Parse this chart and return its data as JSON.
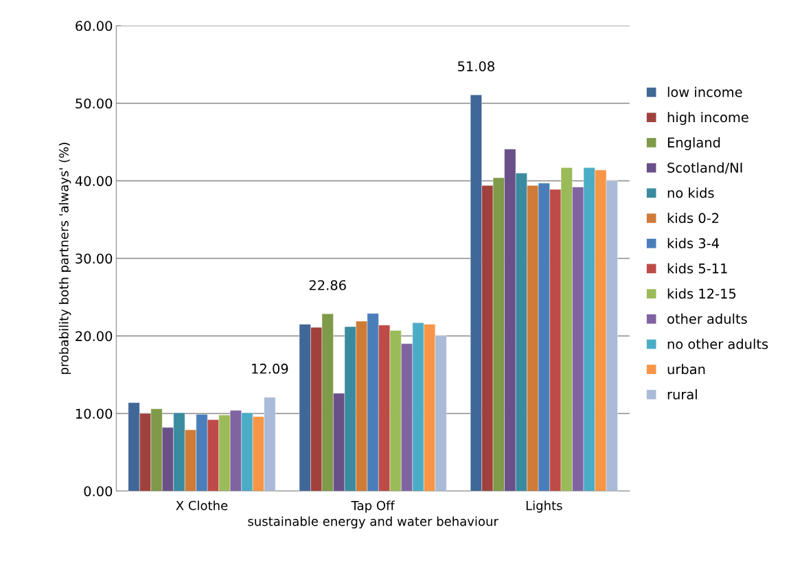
{
  "chart_data": {
    "type": "bar",
    "xlabel": "sustainable energy and water behaviour",
    "ylabel": "probability both partners 'always' (%)",
    "categories": [
      "X Clothe",
      "Tap Off",
      "Lights"
    ],
    "series": [
      {
        "name": "low income",
        "color": "#3f6797",
        "values": [
          11.4,
          21.5,
          51.08
        ],
        "value_labels": [
          null,
          null,
          "51.08"
        ]
      },
      {
        "name": "high income",
        "color": "#a0413e",
        "values": [
          10.0,
          21.1,
          39.4
        ]
      },
      {
        "name": "England",
        "color": "#7f9a48",
        "values": [
          10.6,
          22.86,
          40.4
        ],
        "value_labels": [
          null,
          "22.86",
          null
        ]
      },
      {
        "name": "Scotland/NI",
        "color": "#6a5089",
        "values": [
          8.2,
          12.6,
          44.1
        ]
      },
      {
        "name": "no kids",
        "color": "#3a8ba0",
        "values": [
          10.1,
          21.2,
          41.0
        ]
      },
      {
        "name": "kids 0-2",
        "color": "#cf7b38",
        "values": [
          7.9,
          21.9,
          39.4
        ]
      },
      {
        "name": "kids 3-4",
        "color": "#4a7ebb",
        "values": [
          9.9,
          22.9,
          39.7
        ]
      },
      {
        "name": "kids 5-11",
        "color": "#be4b48",
        "values": [
          9.2,
          21.4,
          38.9
        ]
      },
      {
        "name": "kids 12-15",
        "color": "#9bbb59",
        "values": [
          9.8,
          20.7,
          41.7
        ]
      },
      {
        "name": "other adults",
        "color": "#8064a2",
        "values": [
          10.4,
          19.0,
          39.2
        ]
      },
      {
        "name": "no other adults",
        "color": "#4bacc6",
        "values": [
          10.1,
          21.7,
          41.7
        ]
      },
      {
        "name": "urban",
        "color": "#f79646",
        "values": [
          9.6,
          21.5,
          41.4
        ]
      },
      {
        "name": "rural",
        "color": "#aabad7",
        "values": [
          12.09,
          20.0,
          40.0
        ],
        "value_labels": [
          "12.09",
          null,
          null
        ]
      }
    ],
    "ylim": [
      0,
      60
    ],
    "yticks": [
      {
        "value": 0,
        "label": "0.00"
      },
      {
        "value": 10,
        "label": "10.00"
      },
      {
        "value": 20,
        "label": "20.00"
      },
      {
        "value": 30,
        "label": "30.00"
      },
      {
        "value": 40,
        "label": "40.00"
      },
      {
        "value": 50,
        "label": "50.00"
      },
      {
        "value": 60,
        "label": "60.00"
      }
    ],
    "grid": "y",
    "legend": "right"
  }
}
